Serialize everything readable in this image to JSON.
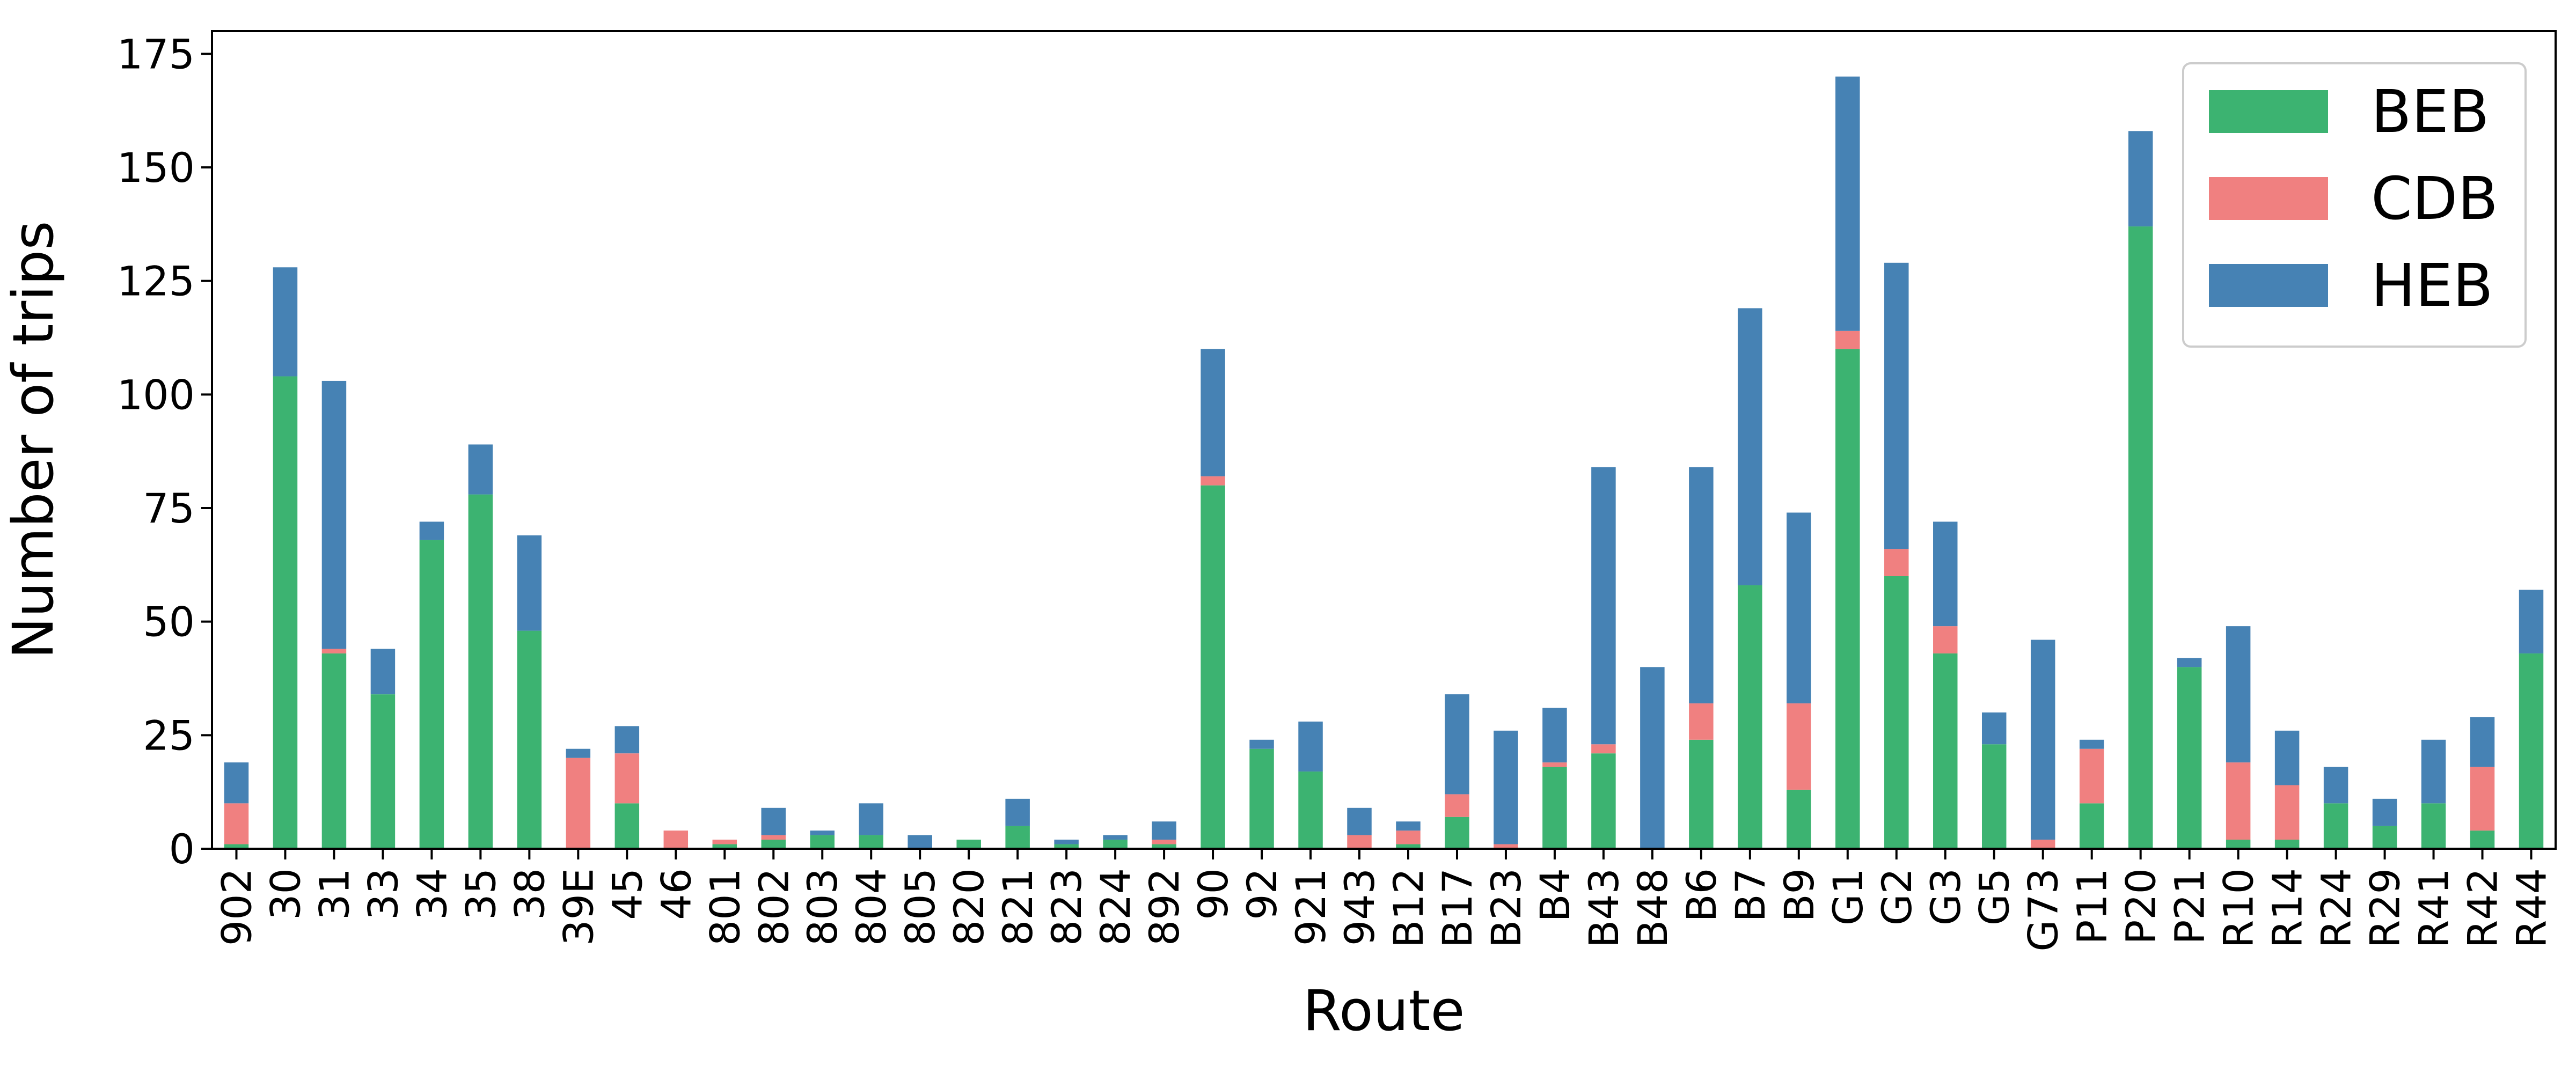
{
  "chart_data": {
    "type": "bar",
    "stacked": true,
    "xlabel": "Route",
    "ylabel": "Number of trips",
    "ylim": [
      0,
      180
    ],
    "yticks": [
      0,
      25,
      50,
      75,
      100,
      125,
      150,
      175
    ],
    "grid": false,
    "legend_position": "top-right",
    "categories": [
      "902",
      "30",
      "31",
      "33",
      "34",
      "35",
      "38",
      "39E",
      "45",
      "46",
      "801",
      "802",
      "803",
      "804",
      "805",
      "820",
      "821",
      "823",
      "824",
      "892",
      "90",
      "92",
      "921",
      "943",
      "B12",
      "B17",
      "B23",
      "B4",
      "B43",
      "B48",
      "B6",
      "B7",
      "B9",
      "G1",
      "G2",
      "G3",
      "G5",
      "G73",
      "P11",
      "P20",
      "P21",
      "R10",
      "R14",
      "R24",
      "R29",
      "R41",
      "R42",
      "R44"
    ],
    "series": [
      {
        "name": "BEB",
        "color": "#3cb371",
        "values": [
          1,
          104,
          43,
          34,
          68,
          78,
          48,
          0,
          10,
          0,
          1,
          2,
          3,
          3,
          0,
          2,
          5,
          1,
          2,
          1,
          80,
          22,
          17,
          0,
          1,
          7,
          0,
          18,
          21,
          0,
          24,
          58,
          13,
          110,
          60,
          43,
          23,
          0,
          10,
          137,
          40,
          2,
          2,
          10,
          5,
          10,
          4,
          43
        ]
      },
      {
        "name": "CDB",
        "color": "#f08080",
        "values": [
          9,
          0,
          1,
          0,
          0,
          0,
          0,
          20,
          11,
          4,
          1,
          1,
          0,
          0,
          0,
          0,
          0,
          0,
          0,
          1,
          2,
          0,
          0,
          3,
          3,
          5,
          1,
          1,
          2,
          0,
          8,
          0,
          19,
          4,
          6,
          6,
          0,
          2,
          12,
          0,
          0,
          17,
          12,
          0,
          0,
          0,
          14,
          0
        ]
      },
      {
        "name": "HEB",
        "color": "#4682b4",
        "values": [
          9,
          24,
          59,
          10,
          4,
          11,
          21,
          2,
          6,
          0,
          0,
          6,
          1,
          7,
          3,
          0,
          6,
          1,
          1,
          4,
          28,
          2,
          11,
          6,
          2,
          22,
          25,
          12,
          61,
          40,
          52,
          61,
          42,
          56,
          63,
          23,
          7,
          44,
          2,
          21,
          2,
          30,
          12,
          8,
          6,
          14,
          11,
          14
        ]
      }
    ]
  }
}
